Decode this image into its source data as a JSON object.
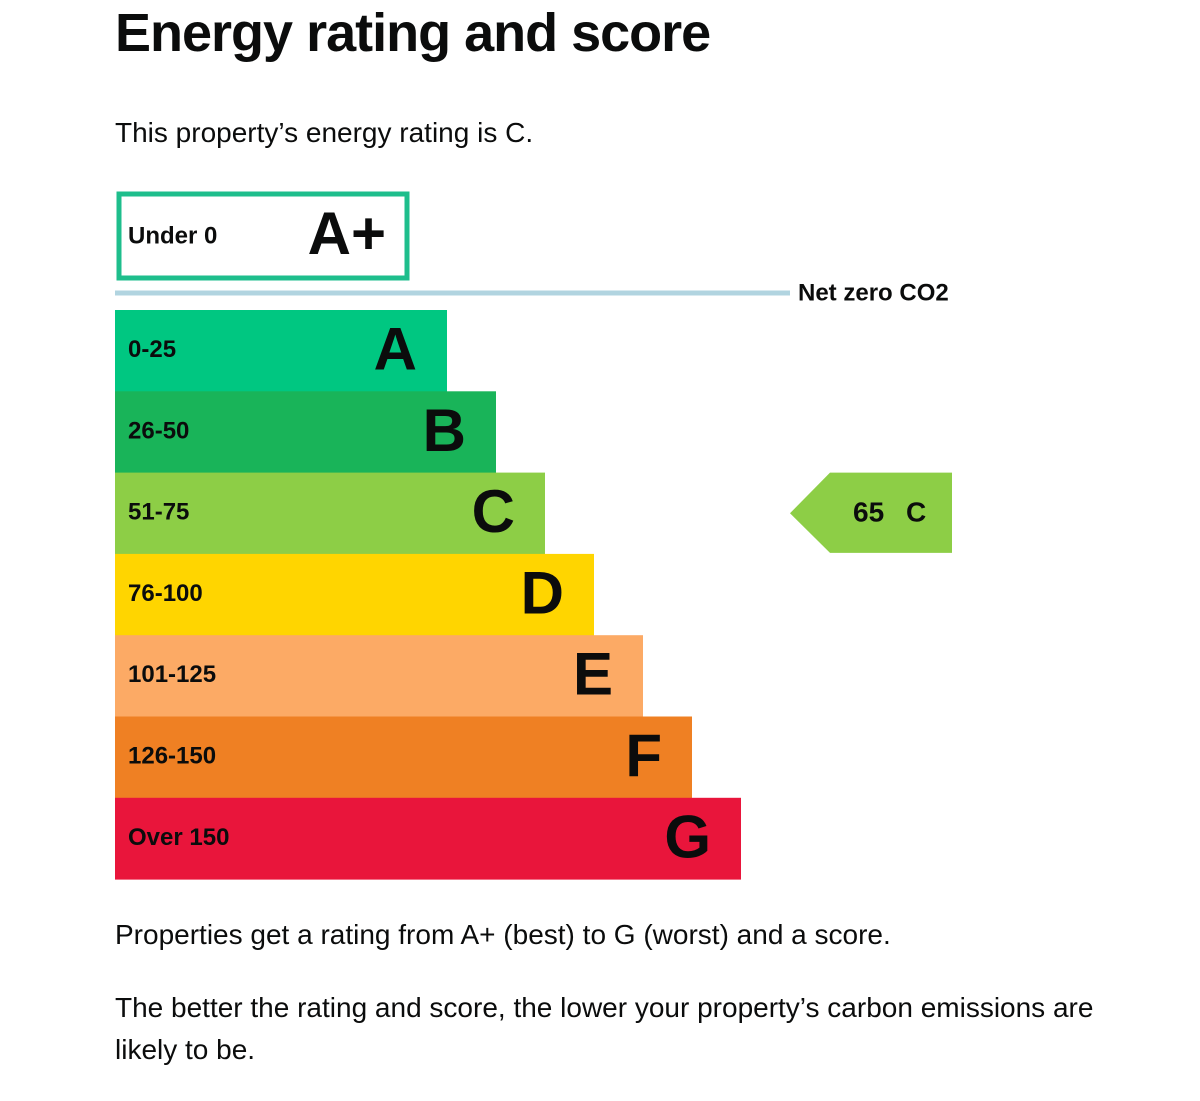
{
  "header": {
    "title": "Energy rating and score"
  },
  "intro": "This property’s energy rating is C.",
  "rating_scale": {
    "top_band": {
      "range": "Under 0",
      "letter": "A+",
      "color": "#1ebe8c"
    },
    "net_zero_label": "Net zero CO2",
    "bands": [
      {
        "range": "0-25",
        "letter": "A",
        "color": "#00c781"
      },
      {
        "range": "26-50",
        "letter": "B",
        "color": "#19b459"
      },
      {
        "range": "51-75",
        "letter": "C",
        "color": "#8dce46"
      },
      {
        "range": "76-100",
        "letter": "D",
        "color": "#ffd500"
      },
      {
        "range": "101-125",
        "letter": "E",
        "color": "#fcaa65"
      },
      {
        "range": "126-150",
        "letter": "F",
        "color": "#ef8023"
      },
      {
        "range": "Over 150",
        "letter": "G",
        "color": "#e9153b"
      }
    ],
    "current": {
      "score": 65,
      "letter": "C",
      "color": "#8dce46"
    }
  },
  "footer": {
    "paragraphs": [
      "Properties get a rating from A+ (best) to G (worst) and a score.",
      "The better the rating and score, the lower your property’s carbon emissions are likely to be."
    ]
  }
}
